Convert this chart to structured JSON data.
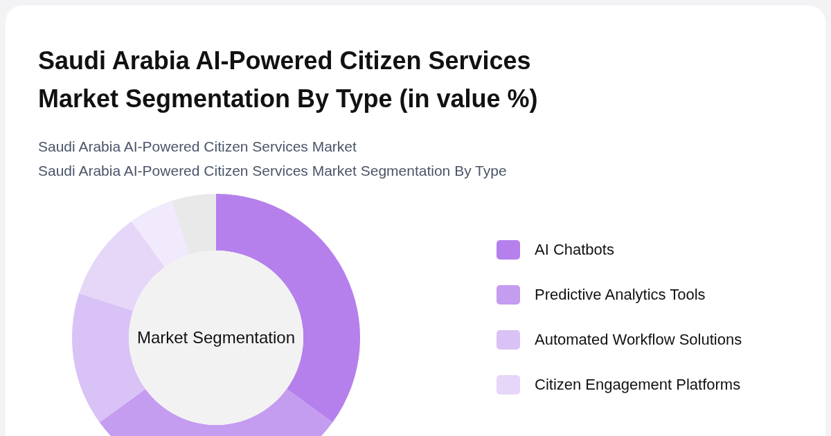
{
  "chart_data": {
    "type": "donut",
    "title": "Saudi Arabia AI-Powered Citizen Services Market Segmentation By Type (in value %)",
    "subtitle": "Saudi Arabia AI-Powered Citizen Services Market\nSaudi Arabia AI-Powered Citizen Services Market Segmentation By Type",
    "annotations": [
      "Market Segmentation"
    ],
    "categories": [
      "AI Chatbots",
      "Predictive Analytics Tools",
      "Automated Workflow Solutions",
      "Citizen Engagement Platforms",
      null,
      null
    ],
    "values": [
      35,
      30,
      15,
      10,
      5,
      5
    ],
    "colors": [
      "#b580eb",
      "#c49cf0",
      "#d9c2f5",
      "#e6d6f8",
      "#f1e9fc",
      "#e9e9e9"
    ],
    "legend": "right"
  }
}
